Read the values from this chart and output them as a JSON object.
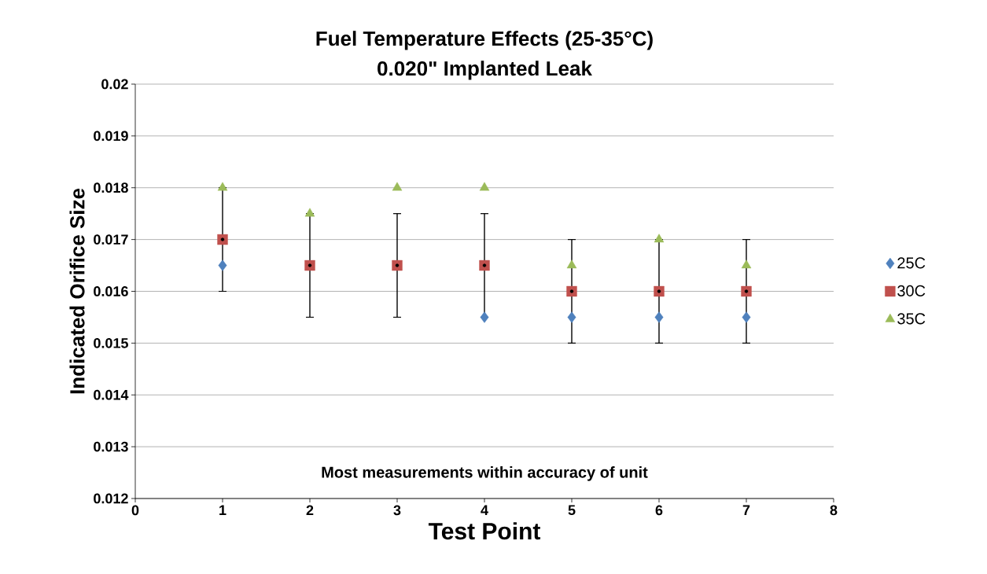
{
  "chart_data": {
    "type": "scatter",
    "title": "Fuel Temperature Effects (25-35°C)",
    "subtitle": "0.020\" Implanted Leak",
    "xlabel": "Test Point",
    "ylabel": "Indicated Orifice Size",
    "annotations": [
      "Most measurements within accuracy of unit"
    ],
    "x": [
      1,
      2,
      3,
      4,
      5,
      6,
      7
    ],
    "series": [
      {
        "name": "25C",
        "color": "#4f81bd",
        "marker": "diamond",
        "values": [
          0.0165,
          null,
          null,
          0.0155,
          0.0155,
          0.0155,
          0.0155
        ]
      },
      {
        "name": "30C",
        "color": "#c0504d",
        "marker": "square",
        "values": [
          0.017,
          0.0165,
          0.0165,
          0.0165,
          0.016,
          0.016,
          0.016
        ],
        "errors": [
          0.001,
          0.001,
          0.001,
          0.001,
          0.001,
          0.001,
          0.001
        ]
      },
      {
        "name": "35C",
        "color": "#9bbb59",
        "marker": "triangle",
        "values": [
          0.018,
          0.0175,
          0.018,
          0.018,
          0.0165,
          0.017,
          0.0165
        ]
      }
    ],
    "xlim": [
      0,
      8
    ],
    "xticks": [
      0,
      1,
      2,
      3,
      4,
      5,
      6,
      7,
      8
    ],
    "ylim": [
      0.012,
      0.02
    ],
    "yticks": [
      0.012,
      0.013,
      0.014,
      0.015,
      0.016,
      0.017,
      0.018,
      0.019,
      0.02
    ],
    "grid": "y",
    "legend": "right"
  }
}
